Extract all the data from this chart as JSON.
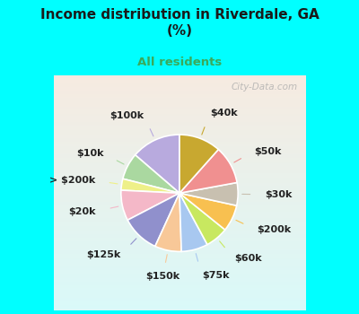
{
  "title": "Income distribution in Riverdale, GA\n(%)",
  "subtitle": "All residents",
  "title_color": "#1a1a1a",
  "subtitle_color": "#3aaa5a",
  "background_color": "#00ffff",
  "chart_bg_color": "#dff5ee",
  "labels": [
    "$100k",
    "$10k",
    "> $200k",
    "$20k",
    "$125k",
    "$150k",
    "$75k",
    "$60k",
    "$200k",
    "$30k",
    "$50k",
    "$40k"
  ],
  "values": [
    13,
    7,
    3,
    8,
    10,
    7,
    7,
    6,
    7,
    6,
    10,
    11
  ],
  "colors": [
    "#b8aade",
    "#aad8a0",
    "#eef088",
    "#f4b8c8",
    "#9090cc",
    "#f8c898",
    "#a8c8f0",
    "#c8e860",
    "#f8c050",
    "#c8c0b0",
    "#f09090",
    "#c8a830"
  ],
  "label_color": "#222222",
  "label_fontsize": 8.0,
  "watermark": "City-Data.com",
  "startangle": 90
}
